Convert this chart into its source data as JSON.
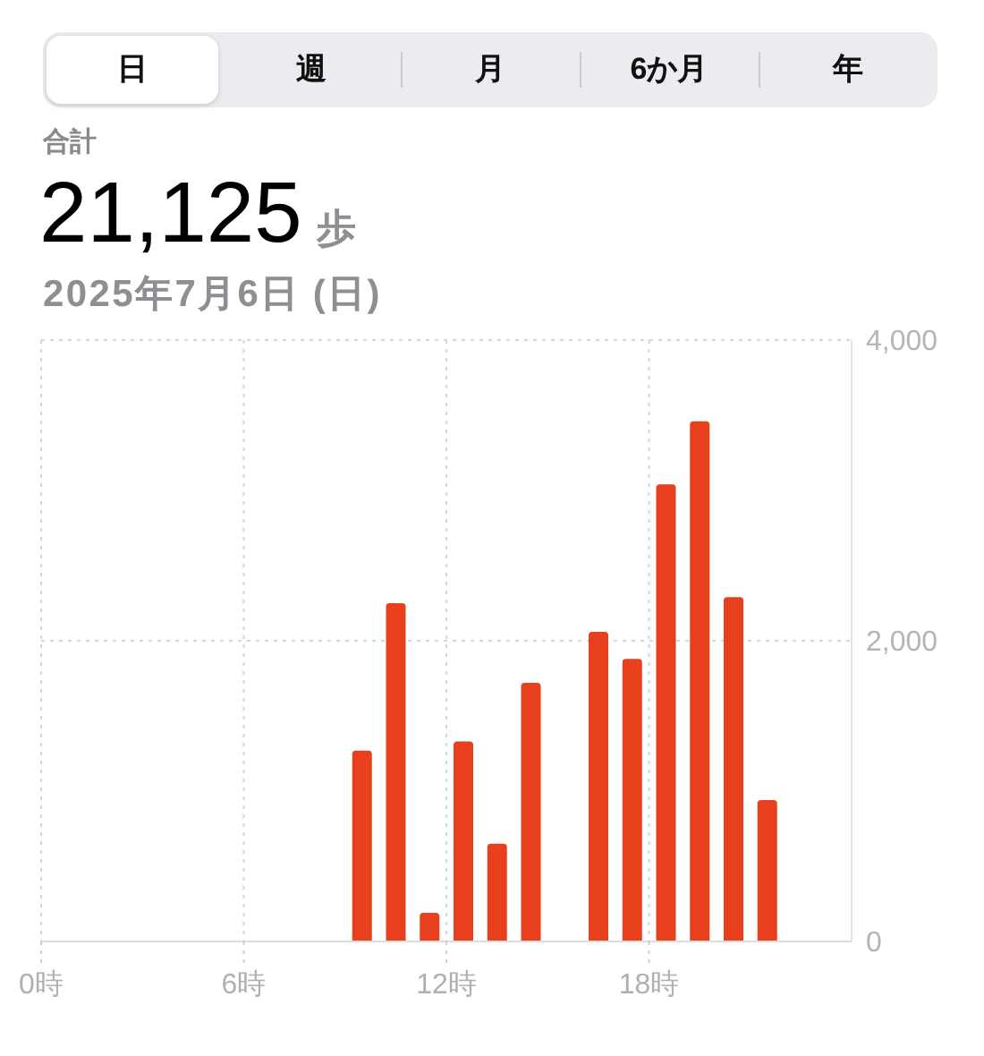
{
  "chart_data": {
    "type": "bar",
    "title": "21,125 歩",
    "subtitle": "2025年7月6日 (日)",
    "annotations": [
      "日",
      "週",
      "月",
      "6か月",
      "年",
      "合計"
    ],
    "x": [
      9.5,
      10.5,
      11.5,
      12.5,
      13.5,
      14.5,
      16.5,
      17.5,
      18.5,
      19.5,
      20.5,
      21.5
    ],
    "values": [
      1270,
      2250,
      190,
      1330,
      650,
      1720,
      2060,
      1880,
      3040,
      3460,
      2290,
      940
    ],
    "color": "#e8401c",
    "xlim": [
      0,
      24
    ],
    "xticks": [
      {
        "value": 0,
        "label": "0時"
      },
      {
        "value": 6,
        "label": "6時"
      },
      {
        "value": 12,
        "label": "12時"
      },
      {
        "value": 18,
        "label": "18時"
      }
    ],
    "ylim": [
      0,
      4000
    ],
    "yticks": [
      0,
      {
        "value": 2000,
        "label": "2,000"
      },
      {
        "value": 4000,
        "label": "4,000"
      }
    ],
    "grid": true
  }
}
